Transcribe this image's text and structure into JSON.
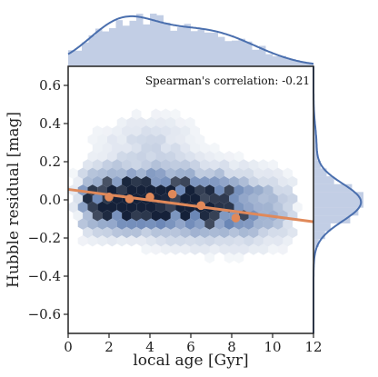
{
  "chart_data": {
    "type": "scatter",
    "subtype": "hexbin-joint-plot",
    "xlabel": "local age [Gyr]",
    "ylabel": "Hubble residual [mag]",
    "xlim": [
      0,
      12
    ],
    "ylim": [
      -0.7,
      0.7
    ],
    "x_ticks": [
      0,
      2,
      4,
      6,
      8,
      10,
      12
    ],
    "x_tick_labels": [
      "0",
      "2",
      "4",
      "6",
      "8",
      "10",
      "12"
    ],
    "y_ticks": [
      -0.6,
      -0.4,
      -0.2,
      0.0,
      0.2,
      0.4,
      0.6
    ],
    "y_tick_labels": [
      "−0.6",
      "−0.4",
      "−0.2",
      "0.0",
      "0.2",
      "0.4",
      "0.6"
    ],
    "annotation": "Spearman's correlation: -0.21",
    "binned_points": [
      {
        "x": 2.0,
        "y": 0.015
      },
      {
        "x": 3.0,
        "y": 0.005
      },
      {
        "x": 4.0,
        "y": 0.015
      },
      {
        "x": 5.1,
        "y": 0.03
      },
      {
        "x": 6.5,
        "y": -0.03
      },
      {
        "x": 8.2,
        "y": -0.095
      }
    ],
    "fit_line": {
      "x": [
        0,
        12
      ],
      "y": [
        0.055,
        -0.115
      ]
    },
    "density_centers": [
      {
        "x": 2.5,
        "y": 0.0,
        "sx": 1.6,
        "sy": 0.09,
        "w": 1.0
      },
      {
        "x": 5.5,
        "y": 0.0,
        "sx": 2.2,
        "sy": 0.1,
        "w": 0.7
      },
      {
        "x": 8.0,
        "y": -0.06,
        "sx": 2.0,
        "sy": 0.1,
        "w": 0.5
      },
      {
        "x": 4.0,
        "y": 0.3,
        "sx": 1.5,
        "sy": 0.09,
        "w": 0.15
      }
    ],
    "colors": {
      "hex_base": "#3a5f9e",
      "marginal_fill": "#8fa6cf",
      "marginal_line": "#4a6fae",
      "binned_points": "#e0895a",
      "fit_line": "#e0895a"
    }
  }
}
